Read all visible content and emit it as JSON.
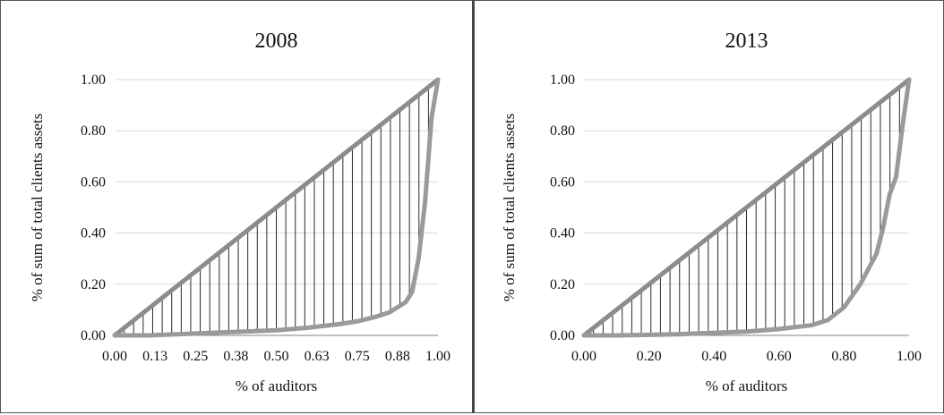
{
  "chart_data": [
    {
      "type": "line",
      "title": "2008",
      "xlabel": "% of auditors",
      "ylabel": "% of sum of total clients assets",
      "x_tick_labels": [
        "0.00",
        "0.13",
        "0.25",
        "0.38",
        "0.50",
        "0.63",
        "0.75",
        "0.88",
        "1.00"
      ],
      "y_tick_labels": [
        "0.00",
        "0.20",
        "0.40",
        "0.60",
        "0.80",
        "1.00"
      ],
      "xlim": [
        0,
        1
      ],
      "ylim": [
        0,
        1
      ],
      "grid": true,
      "series": [
        {
          "role": "equality-line",
          "x": [
            0,
            1
          ],
          "y": [
            0,
            1
          ]
        },
        {
          "role": "lorenz-curve",
          "x": [
            0,
            0.05,
            0.1,
            0.2,
            0.3,
            0.4,
            0.5,
            0.6,
            0.7,
            0.75,
            0.8,
            0.85,
            0.9,
            0.92,
            0.94,
            0.96,
            0.98,
            1.0
          ],
          "y": [
            0,
            0.0,
            0.0,
            0.005,
            0.01,
            0.015,
            0.02,
            0.03,
            0.045,
            0.055,
            0.07,
            0.09,
            0.13,
            0.17,
            0.3,
            0.52,
            0.85,
            1.0
          ]
        }
      ]
    },
    {
      "type": "line",
      "title": "2013",
      "xlabel": "% of auditors",
      "ylabel": "% of sum of total clients assets",
      "x_tick_labels": [
        "0.00",
        "0.20",
        "0.40",
        "0.60",
        "0.80",
        "1.00"
      ],
      "y_tick_labels": [
        "0.00",
        "0.20",
        "0.40",
        "0.60",
        "0.80",
        "1.00"
      ],
      "xlim": [
        0,
        1
      ],
      "ylim": [
        0,
        1
      ],
      "grid": true,
      "series": [
        {
          "role": "equality-line",
          "x": [
            0,
            1
          ],
          "y": [
            0,
            1
          ]
        },
        {
          "role": "lorenz-curve",
          "x": [
            0,
            0.05,
            0.1,
            0.2,
            0.3,
            0.4,
            0.5,
            0.6,
            0.7,
            0.75,
            0.8,
            0.85,
            0.9,
            0.92,
            0.94,
            0.96,
            0.98,
            1.0
          ],
          "y": [
            0,
            0.0,
            0.0,
            0.002,
            0.005,
            0.01,
            0.015,
            0.025,
            0.04,
            0.06,
            0.11,
            0.2,
            0.32,
            0.42,
            0.55,
            0.62,
            0.82,
            1.0
          ]
        }
      ]
    }
  ]
}
